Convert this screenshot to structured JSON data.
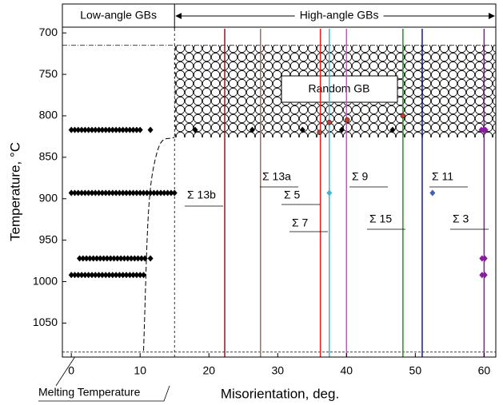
{
  "chart_data": {
    "type": "scatter",
    "x_label": "Misorientation, deg.",
    "y_label": "Temperature, °C",
    "xlim": [
      -1.3,
      61.7
    ],
    "ylim": [
      695,
      1091
    ],
    "y_inverted": true,
    "xticks": [
      0,
      10,
      20,
      30,
      40,
      50,
      60
    ],
    "yticks": [
      700,
      750,
      800,
      850,
      900,
      950,
      1000,
      1050
    ],
    "regions": {
      "low": "Low-angle GBs",
      "high": "High-angle GBs",
      "boundary_x": 15
    },
    "random_region": {
      "label": "Random GB",
      "top": 715,
      "bottom": 826
    },
    "melting": {
      "label": "Melting Temperature",
      "value": 1085
    },
    "boundaries": [
      {
        "label": "Σ 13b",
        "x": 22.3,
        "color": "#8b1a1a"
      },
      {
        "label": "Σ 13a",
        "x": 27.5,
        "color": "#a0705a"
      },
      {
        "label": "Σ 5",
        "x": 36.2,
        "color": "#e8201c"
      },
      {
        "label": "Σ 7",
        "x": 37.5,
        "color": "#3cb4e0"
      },
      {
        "label": "Σ 9",
        "x": 40,
        "color": "#e040e0"
      },
      {
        "label": "Σ 15",
        "x": 48.2,
        "color": "#1a9a1a"
      },
      {
        "label": "Σ 11",
        "x": 51,
        "color": "#1a1a80"
      },
      {
        "label": "Σ 3",
        "x": 60,
        "color": "#8a1aa0"
      }
    ],
    "series": [
      {
        "color": "#000000",
        "marker": "diamond",
        "x": [
          0,
          0.5,
          1,
          1.5,
          2,
          2.5,
          3,
          3.5,
          4,
          4.5,
          5,
          5.5,
          6,
          6.5,
          7,
          7.5,
          8,
          8.5,
          9,
          9.5,
          10,
          11.5,
          18,
          26.3,
          33.6,
          39.3,
          46.7
        ],
        "values": [
          817,
          817,
          817,
          817,
          817,
          817,
          817,
          817,
          817,
          817,
          817,
          817,
          817,
          817,
          817,
          817,
          817,
          817,
          817,
          817,
          817,
          817,
          817,
          817,
          817,
          817,
          817
        ]
      },
      {
        "color": "#000000",
        "marker": "diamond",
        "x": [
          0,
          0.5,
          1,
          1.5,
          2,
          2.5,
          3,
          3.5,
          4,
          4.5,
          5,
          5.5,
          6,
          6.5,
          7,
          7.5,
          8,
          8.5,
          9,
          9.5,
          10,
          10.5,
          11,
          11.5,
          12,
          12.5,
          13,
          13.5,
          14,
          14.5,
          15
        ],
        "values": [
          893,
          893,
          893,
          893,
          893,
          893,
          893,
          893,
          893,
          893,
          893,
          893,
          893,
          893,
          893,
          893,
          893,
          893,
          893,
          893,
          893,
          893,
          893,
          893,
          893,
          893,
          893,
          893,
          893,
          893,
          893
        ]
      },
      {
        "color": "#000000",
        "marker": "diamond",
        "x": [
          1.2,
          1.7,
          2.2,
          2.7,
          3.2,
          3.7,
          4.2,
          4.7,
          5.2,
          5.7,
          6.2,
          6.7,
          7.2,
          7.7,
          8.2,
          8.7,
          9.2,
          9.7,
          10.2,
          10.7,
          11.5
        ],
        "values": [
          972,
          972,
          972,
          972,
          972,
          972,
          972,
          972,
          972,
          972,
          972,
          972,
          972,
          972,
          972,
          972,
          972,
          972,
          972,
          972,
          972
        ]
      },
      {
        "color": "#000000",
        "marker": "diamond",
        "x": [
          0,
          0.5,
          1,
          1.5,
          2,
          2.5,
          3,
          3.5,
          4,
          4.5,
          5,
          5.5,
          6,
          6.5,
          7,
          7.5,
          8,
          8.5,
          9,
          9.5,
          10,
          10.5
        ],
        "values": [
          992,
          992,
          992,
          992,
          992,
          992,
          992,
          992,
          992,
          992,
          992,
          992,
          992,
          992,
          992,
          992,
          992,
          992,
          992,
          992,
          992,
          992
        ]
      },
      {
        "color": "#c04030",
        "marker": "circle",
        "x": [
          36.1,
          37.5,
          40.1,
          48.2
        ],
        "values": [
          820,
          808,
          805,
          800
        ]
      },
      {
        "color": "#3cb4e0",
        "marker": "diamond",
        "x": [
          37.5
        ],
        "values": [
          893
        ]
      },
      {
        "color": "#4060b0",
        "marker": "diamond",
        "x": [
          52.5
        ],
        "values": [
          893
        ]
      },
      {
        "color": "#8a1aa0",
        "marker": "diamond",
        "x": [
          59.6,
          59.9,
          60.2,
          59.7,
          60.1,
          59.7,
          60.1
        ],
        "values": [
          817,
          817,
          817,
          972,
          972,
          992,
          992
        ]
      }
    ]
  }
}
